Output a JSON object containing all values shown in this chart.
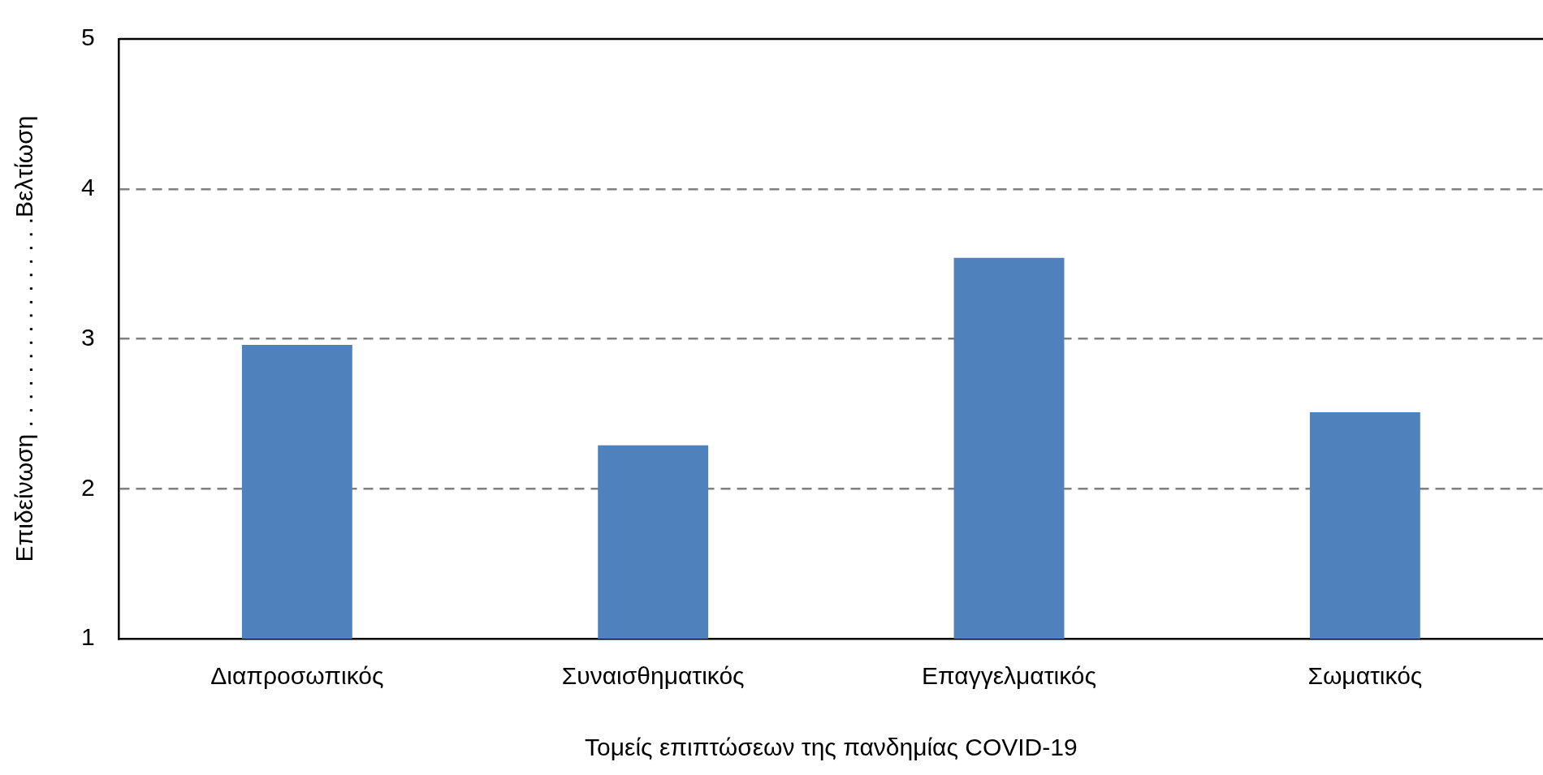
{
  "chart_data": {
    "type": "bar",
    "xlabel": "Τομείς επιπτώσεων της πανδημίας COVID-19",
    "ylabel": "Επιδείνωση . . . . . . . . . . . . . . . .Βελτίωση",
    "categories": [
      "Διαπροσωπικός",
      "Συναισθηματικός",
      "Επαγγελματικός",
      "Σωματικός"
    ],
    "values": [
      2.96,
      2.29,
      3.54,
      2.51
    ],
    "color": "#4f81bd",
    "ylim": [
      1,
      5
    ],
    "yticks": [
      1,
      2,
      3,
      4,
      5
    ],
    "grid": "y",
    "line_style": "dashed",
    "legend": false
  }
}
